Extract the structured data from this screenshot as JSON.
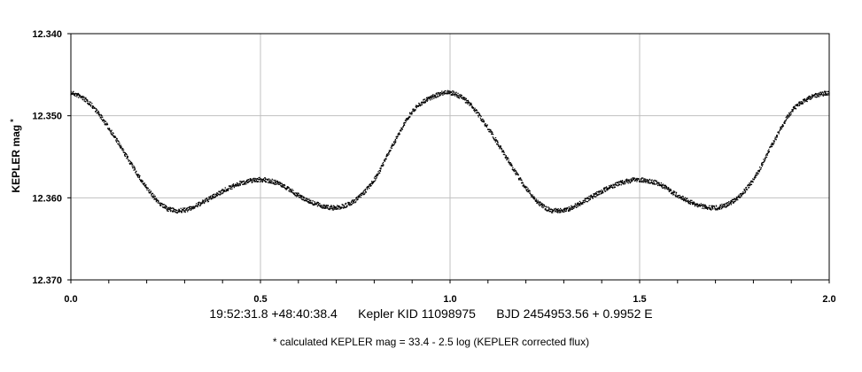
{
  "chart_data": {
    "type": "scatter",
    "title": "",
    "xlabel": "",
    "ylabel": "KEPLER mag",
    "ylabel_superscript": "*",
    "xlim": [
      0.0,
      2.0
    ],
    "ylim": [
      12.34,
      12.37
    ],
    "y_inverted": true,
    "grid": true,
    "x_ticks": [
      "0.0",
      "0.5",
      "1.0",
      "1.5",
      "2.0"
    ],
    "y_ticks": [
      "12.340",
      "12.350",
      "12.360",
      "12.370"
    ],
    "series": [
      {
        "x": [
          0.0,
          0.05,
          0.1,
          0.15,
          0.2,
          0.25,
          0.3,
          0.35,
          0.4,
          0.45,
          0.5,
          0.55,
          0.6,
          0.65,
          0.7,
          0.75,
          0.8,
          0.85,
          0.9,
          0.95,
          1.0,
          1.05,
          1.1,
          1.15,
          1.2,
          1.25,
          1.3,
          1.35,
          1.4,
          1.45,
          1.5,
          1.55,
          1.6,
          1.65,
          1.7,
          1.75,
          1.8,
          1.85,
          1.9,
          1.95,
          2.0
        ],
        "y": [
          12.3472,
          12.3485,
          12.3515,
          12.3552,
          12.3588,
          12.3612,
          12.3615,
          12.3605,
          12.3592,
          12.3582,
          12.3578,
          12.3583,
          12.3597,
          12.3608,
          12.3612,
          12.3603,
          12.3578,
          12.3535,
          12.3495,
          12.3478,
          12.3472,
          12.3485,
          12.3515,
          12.3552,
          12.3588,
          12.3612,
          12.3615,
          12.3605,
          12.3592,
          12.3582,
          12.3578,
          12.3583,
          12.3597,
          12.3608,
          12.3612,
          12.3603,
          12.3578,
          12.3535,
          12.3495,
          12.3478,
          12.3472
        ]
      }
    ],
    "caption": "19:52:31.8 +48:40:38.4      Kepler KID 11098975      BJD 2454953.56 + 0.9952 E",
    "footnote": "* calculated KEPLER mag = 33.4 - 2.5 log (KEPLER corrected flux)",
    "colors": {
      "points": "#000000",
      "grid": "#c0c0c0",
      "frame": "#000000"
    }
  }
}
